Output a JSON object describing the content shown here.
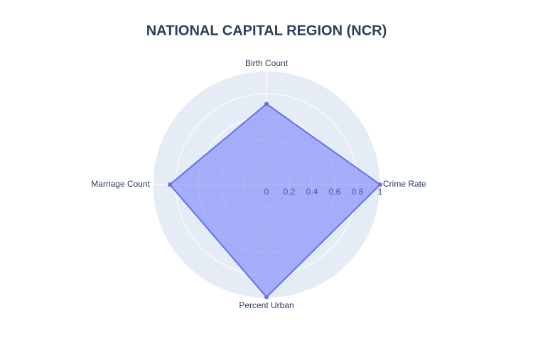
{
  "chart_data": {
    "type": "radar",
    "title": "NATIONAL CAPITAL REGION (NCR)",
    "categories": [
      "Crime Rate",
      "Birth Count",
      "Marriage Count",
      "Percent Urban"
    ],
    "values": [
      1,
      0.71,
      0.85,
      0.99
    ],
    "color": "#636efa",
    "rlim": [
      0,
      1
    ],
    "rticks": [
      0,
      0.2,
      0.4,
      0.6,
      0.8,
      1
    ],
    "grid": true
  }
}
